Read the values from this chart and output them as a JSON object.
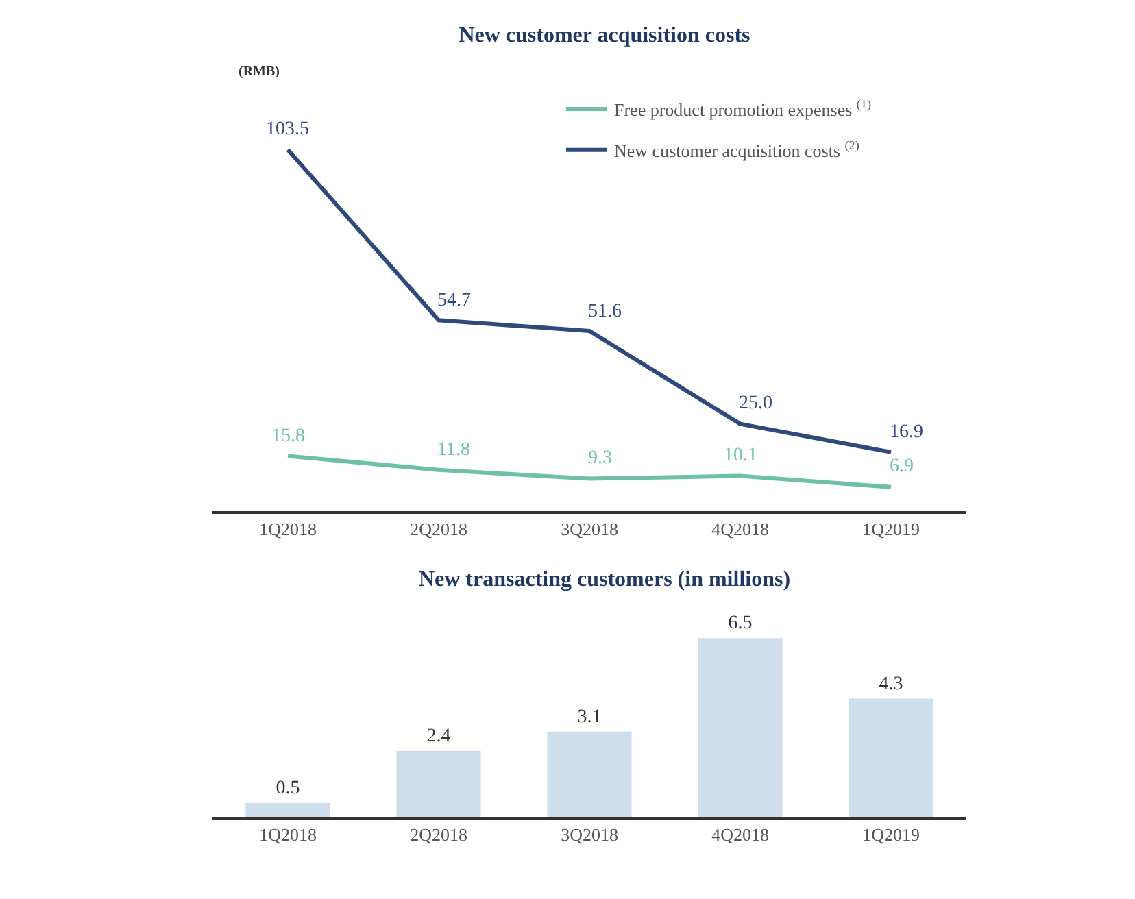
{
  "chart_data": [
    {
      "type": "line",
      "title": "New customer acquisition costs",
      "ylabel": "(RMB)",
      "categories": [
        "1Q2018",
        "2Q2018",
        "3Q2018",
        "4Q2018",
        "1Q2019"
      ],
      "series": [
        {
          "name": "Free product promotion expenses $^{(1)}$",
          "color": "#6cc0a9",
          "values": [
            15.8,
            11.8,
            9.3,
            10.1,
            6.9
          ],
          "value_labels": [
            "15.8",
            "11.8",
            "9.3",
            "10.1",
            "6.9"
          ]
        },
        {
          "name": "New customer acquisition costs $^{(2)}$",
          "color": "#2e4a7d",
          "values": [
            103.5,
            54.7,
            51.6,
            25.0,
            16.9
          ],
          "value_labels": [
            "103.5",
            "54.7",
            "51.6",
            "25.0",
            "16.9"
          ]
        }
      ],
      "legend": "top right",
      "tick_labels": "x"
    },
    {
      "type": "bar",
      "title": "New transacting customers (in millions)",
      "categories": [
        "1Q2018",
        "2Q2018",
        "3Q2018",
        "4Q2018",
        "1Q2019"
      ],
      "values": [
        0.5,
        2.4,
        3.1,
        6.5,
        4.3
      ],
      "color": "#cfdeed",
      "data_labels": true,
      "tick_labels": "x"
    }
  ]
}
